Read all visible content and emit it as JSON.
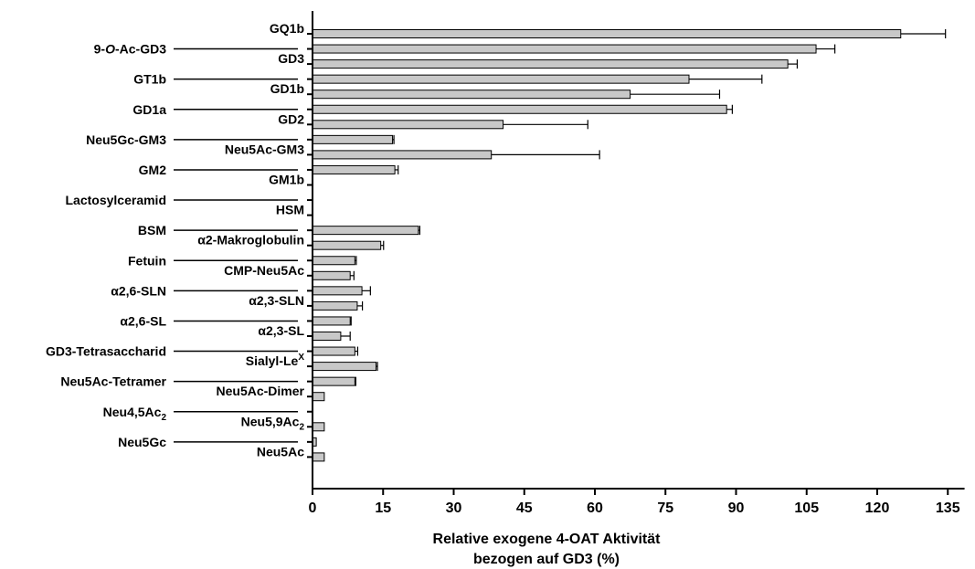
{
  "chart_data": {
    "type": "bar",
    "orientation": "horizontal",
    "categories": [
      "GQ1b",
      "9-O-Ac-GD3",
      "GD3",
      "GT1b",
      "GD1b",
      "GD1a",
      "GD2",
      "Neu5Gc-GM3",
      "Neu5Ac-GM3",
      "GM2",
      "GM1b",
      "Lactosylceramid",
      "HSM",
      "BSM",
      "α2-Makroglobulin",
      "Fetuin",
      "CMP-Neu5Ac",
      "α2,6-SLN",
      "α2,3-SLN",
      "α2,6-SL",
      "α2,3-SL",
      "GD3-Tetrasaccharid",
      "Sialyl-LeX",
      "Neu5Ac-Tetramer",
      "Neu5Ac-Dimer",
      "Neu4,5Ac2",
      "Neu5,9Ac2",
      "Neu5Gc",
      "Neu5Ac"
    ],
    "label_sides": [
      "right",
      "left",
      "right",
      "left",
      "right",
      "left",
      "right",
      "left",
      "right",
      "left",
      "right",
      "left",
      "right",
      "left",
      "right",
      "left",
      "right",
      "left",
      "right",
      "left",
      "right",
      "left",
      "right",
      "left",
      "right",
      "left",
      "right",
      "left",
      "right"
    ],
    "values": [
      125,
      107,
      101,
      80,
      67.5,
      88,
      40.5,
      17,
      38,
      17.5,
      0,
      0,
      0,
      22.5,
      14.5,
      9,
      8,
      10.5,
      9.5,
      8,
      6,
      9,
      13.5,
      9,
      2.5,
      0,
      2.5,
      0.8,
      2.5
    ],
    "errors": [
      9.5,
      4,
      2,
      15.5,
      19,
      1.2,
      18,
      0.3,
      23,
      0.7,
      0,
      0,
      0,
      0.3,
      0.6,
      0.3,
      0.8,
      1.8,
      1.1,
      0.2,
      2,
      0.6,
      0.3,
      0.2,
      0,
      0,
      0,
      0,
      0
    ],
    "xlabel": [
      "Relative exogene 4-OAT Aktivität",
      "bezogen auf GD3 (%)"
    ],
    "xlim": [
      0,
      137
    ],
    "xticks": [
      0,
      15,
      30,
      45,
      60,
      75,
      90,
      105,
      120,
      135
    ],
    "bar_color": "#c8c8c8",
    "bar_edge_color": "#000000",
    "grid": false
  }
}
